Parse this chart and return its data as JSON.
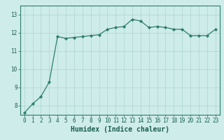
{
  "x": [
    0,
    1,
    2,
    3,
    4,
    5,
    6,
    7,
    8,
    9,
    10,
    11,
    12,
    13,
    14,
    15,
    16,
    17,
    18,
    19,
    20,
    21,
    22,
    23
  ],
  "y": [
    7.6,
    8.1,
    8.5,
    9.3,
    11.8,
    11.7,
    11.75,
    11.8,
    11.85,
    11.9,
    12.2,
    12.3,
    12.35,
    12.75,
    12.65,
    12.3,
    12.35,
    12.3,
    12.2,
    12.2,
    11.85,
    11.85,
    11.85,
    12.2
  ],
  "line_color": "#2e7d6e",
  "marker": "D",
  "marker_size": 2.2,
  "bg_color": "#ceecea",
  "grid_color": "#afd4d0",
  "xlabel": "Humidex (Indice chaleur)",
  "ylim": [
    7.5,
    13.5
  ],
  "xlim": [
    -0.5,
    23.5
  ],
  "yticks": [
    8,
    9,
    10,
    11,
    12,
    13
  ],
  "xticks": [
    0,
    1,
    2,
    3,
    4,
    5,
    6,
    7,
    8,
    9,
    10,
    11,
    12,
    13,
    14,
    15,
    16,
    17,
    18,
    19,
    20,
    21,
    22,
    23
  ],
  "tick_fontsize": 5.5,
  "xlabel_fontsize": 7,
  "tick_color": "#1a5c50",
  "spine_color": "#2e7d6e",
  "line_width": 0.9
}
